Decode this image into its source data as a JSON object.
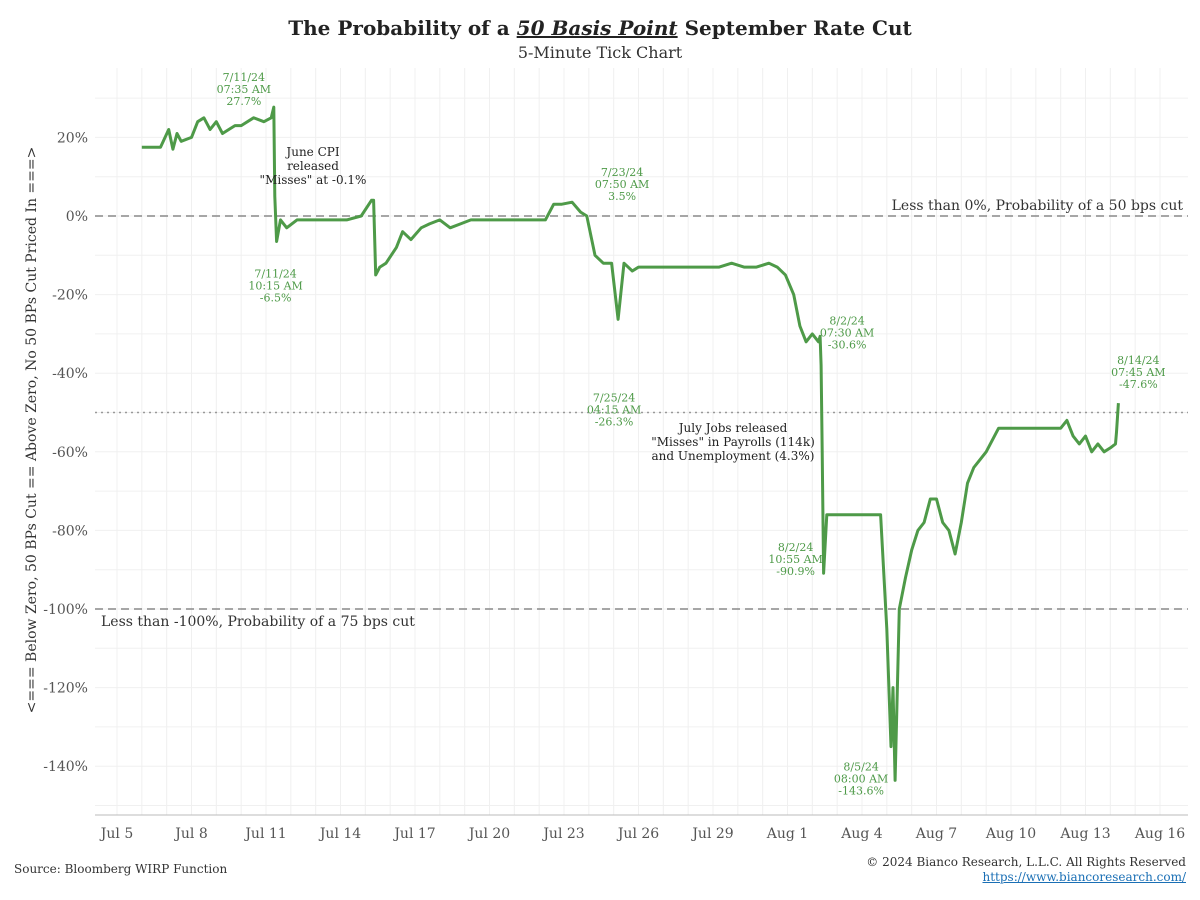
{
  "title": {
    "prefix": "The Probability of a ",
    "emphasis": "50 Basis Point",
    "suffix": " September Rate Cut"
  },
  "subtitle": "5-Minute Tick Chart",
  "source": "Source: Bloomberg WIRP Function",
  "copyright": "© 2024 Bianco Research, L.L.C. All Rights Reserved",
  "website": "https://www.biancoresearch.com/",
  "colors": {
    "line": "#4e9a48",
    "annotation": "#4e9a48",
    "refline": "#999999"
  },
  "chart_data": {
    "type": "line",
    "ylabel": "<=== Below Zero, 50 BPs Cut == Above Zero, No 50 BPs Cut Priced In ===>",
    "xlim": [
      "2024-07-05",
      "2024-08-16"
    ],
    "ylim": [
      -150,
      30
    ],
    "grid": true,
    "x_ticks": [
      "Jul 5",
      "Jul 8",
      "Jul 11",
      "Jul 14",
      "Jul 17",
      "Jul 20",
      "Jul 23",
      "Jul 26",
      "Jul 29",
      "Aug 1",
      "Aug 4",
      "Aug 7",
      "Aug 10",
      "Aug 13",
      "Aug 16"
    ],
    "y_ticks": [
      "20%",
      "0%",
      "-20%",
      "-40%",
      "-60%",
      "-80%",
      "-100%",
      "-120%",
      "-140%"
    ],
    "y_tick_values": [
      20,
      0,
      -20,
      -40,
      -60,
      -80,
      -100,
      -120,
      -140
    ],
    "reference_lines": [
      {
        "y": 0,
        "style": "dashed",
        "label": "Less than 0%, Probability of a 50 bps cut"
      },
      {
        "y": -100,
        "style": "dashed",
        "label": "Less than -100%, Probability of a 75 bps cut"
      },
      {
        "y": -50,
        "style": "dotted",
        "label": ""
      }
    ],
    "series": [
      {
        "x": [
          "2024-07-06T00:00",
          "2024-07-06T18:00",
          "2024-07-07T02:00",
          "2024-07-07T06:00",
          "2024-07-07T10:00",
          "2024-07-07T14:00",
          "2024-07-08T00:00",
          "2024-07-08T06:00",
          "2024-07-08T12:00",
          "2024-07-08T18:00",
          "2024-07-09T00:00",
          "2024-07-09T06:00",
          "2024-07-09T12:00",
          "2024-07-09T18:00",
          "2024-07-10T00:00",
          "2024-07-10T12:00",
          "2024-07-10T22:00",
          "2024-07-11T05:00",
          "2024-07-11T07:35",
          "2024-07-11T08:30",
          "2024-07-11T10:15",
          "2024-07-11T14:00",
          "2024-07-11T20:00",
          "2024-07-12T06:00",
          "2024-07-12T12:00",
          "2024-07-12T20:00",
          "2024-07-13T06:00",
          "2024-07-14T06:00",
          "2024-07-14T20:00",
          "2024-07-15T06:00",
          "2024-07-15T08:00",
          "2024-07-15T10:00",
          "2024-07-15T14:00",
          "2024-07-15T20:00",
          "2024-07-16T06:00",
          "2024-07-16T12:00",
          "2024-07-16T20:00",
          "2024-07-17T06:00",
          "2024-07-17T14:00",
          "2024-07-18T00:00",
          "2024-07-18T10:00",
          "2024-07-18T20:00",
          "2024-07-19T06:00",
          "2024-07-19T18:00",
          "2024-07-20T06:00",
          "2024-07-21T06:00",
          "2024-07-21T20:00",
          "2024-07-22T06:00",
          "2024-07-22T14:00",
          "2024-07-22T22:00",
          "2024-07-23T07:50",
          "2024-07-23T16:00",
          "2024-07-23T22:00",
          "2024-07-24T06:00",
          "2024-07-24T14:00",
          "2024-07-24T22:00",
          "2024-07-25T04:15",
          "2024-07-25T10:00",
          "2024-07-25T18:00",
          "2024-07-26T00:00",
          "2024-07-26T12:00",
          "2024-07-27T06:00",
          "2024-07-28T06:00",
          "2024-07-29T06:00",
          "2024-07-29T18:00",
          "2024-07-30T06:00",
          "2024-07-30T18:00",
          "2024-07-31T06:00",
          "2024-07-31T14:00",
          "2024-07-31T22:00",
          "2024-08-01T06:00",
          "2024-08-01T12:00",
          "2024-08-01T18:00",
          "2024-08-02T00:00",
          "2024-08-02T06:00",
          "2024-08-02T07:30",
          "2024-08-02T08:30",
          "2024-08-02T09:30",
          "2024-08-02T10:55",
          "2024-08-02T14:00",
          "2024-08-02T20:00",
          "2024-08-03T06:00",
          "2024-08-04T06:00",
          "2024-08-04T18:00",
          "2024-08-05T00:00",
          "2024-08-05T04:00",
          "2024-08-05T06:00",
          "2024-08-05T08:00",
          "2024-08-05T12:00",
          "2024-08-05T18:00",
          "2024-08-06T00:00",
          "2024-08-06T06:00",
          "2024-08-06T12:00",
          "2024-08-06T18:00",
          "2024-08-07T00:00",
          "2024-08-07T06:00",
          "2024-08-07T12:00",
          "2024-08-07T18:00",
          "2024-08-08T00:00",
          "2024-08-08T06:00",
          "2024-08-08T12:00",
          "2024-08-08T18:00",
          "2024-08-09T00:00",
          "2024-08-09T12:00",
          "2024-08-10T12:00",
          "2024-08-11T12:00",
          "2024-08-12T00:00",
          "2024-08-12T06:00",
          "2024-08-12T12:00",
          "2024-08-12T18:00",
          "2024-08-13T00:00",
          "2024-08-13T06:00",
          "2024-08-13T12:00",
          "2024-08-13T18:00",
          "2024-08-14T00:00",
          "2024-08-14T05:00",
          "2024-08-14T06:00",
          "2024-08-14T07:45"
        ],
        "y": [
          17.5,
          17.5,
          22,
          17,
          21,
          19,
          20,
          24,
          25,
          22,
          24,
          21,
          22,
          23,
          23,
          25,
          24,
          25,
          27.7,
          5,
          -6.5,
          -1,
          -3,
          -1,
          -1,
          -1,
          -1,
          -1,
          0,
          4,
          4,
          -15,
          -13,
          -12,
          -8,
          -4,
          -6,
          -3,
          -2,
          -1,
          -3,
          -2,
          -1,
          -1,
          -1,
          -1,
          -1,
          -1,
          3,
          3,
          3.5,
          1,
          0,
          -10,
          -12,
          -12,
          -26.3,
          -12,
          -14,
          -13,
          -13,
          -13,
          -13,
          -13,
          -12,
          -13,
          -13,
          -12,
          -13,
          -15,
          -20,
          -28,
          -32,
          -30,
          -32,
          -30.6,
          -38,
          -60,
          -90.9,
          -76,
          -76,
          -76,
          -76,
          -76,
          -105,
          -135,
          -120,
          -143.6,
          -100,
          -92,
          -85,
          -80,
          -78,
          -72,
          -72,
          -78,
          -80,
          -86,
          -78,
          -68,
          -64,
          -62,
          -60,
          -54,
          -54,
          -54,
          -54,
          -52,
          -56,
          -58,
          -56,
          -60,
          -58,
          -60,
          -59,
          -58,
          -55,
          -47.6
        ]
      }
    ],
    "annotations": [
      {
        "x": "2024-07-11T07:35",
        "y": 27.7,
        "lines": [
          "7/11/24",
          "07:35 AM",
          "27.7%"
        ]
      },
      {
        "x": "2024-07-11T10:15",
        "y": -6.5,
        "lines": [
          "7/11/24",
          "10:15 AM",
          "-6.5%"
        ]
      },
      {
        "x": "2024-07-23T07:50",
        "y": 3.5,
        "lines": [
          "7/23/24",
          "07:50 AM",
          "3.5%"
        ]
      },
      {
        "x": "2024-07-25T04:15",
        "y": -26.3,
        "lines": [
          "7/25/24",
          "04:15 AM",
          "-26.3%"
        ]
      },
      {
        "x": "2024-08-02T07:30",
        "y": -30.6,
        "lines": [
          "8/2/24",
          "07:30 AM",
          "-30.6%"
        ]
      },
      {
        "x": "2024-08-02T10:55",
        "y": -90.9,
        "lines": [
          "8/2/24",
          "10:55 AM",
          "-90.9%"
        ]
      },
      {
        "x": "2024-08-05T08:00",
        "y": -143.6,
        "lines": [
          "8/5/24",
          "08:00 AM",
          "-143.6%"
        ]
      },
      {
        "x": "2024-08-14T07:45",
        "y": -47.6,
        "lines": [
          "8/14/24",
          "07:45 AM",
          "-47.6%"
        ]
      }
    ],
    "notes": [
      {
        "lines": [
          "June CPI",
          "released",
          "\"Misses\" at -0.1%"
        ]
      },
      {
        "lines": [
          "July Jobs released",
          "\"Misses\" in Payrolls (114k)",
          "and Unemployment (4.3%)"
        ]
      }
    ]
  }
}
